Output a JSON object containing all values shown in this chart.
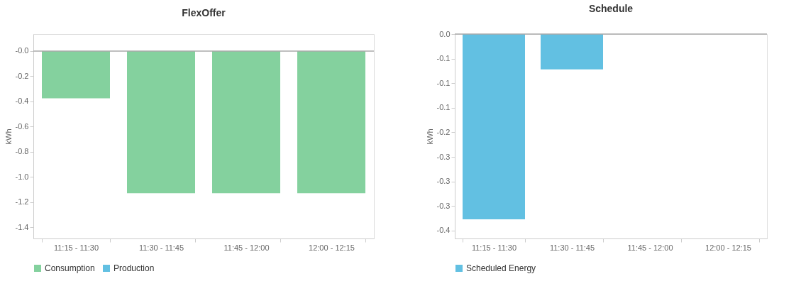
{
  "chart_data": [
    {
      "type": "bar",
      "title": "FlexOffer",
      "ylabel": "kWh",
      "categories": [
        "11:15 - 11:30",
        "11:30 - 11:45",
        "11:45 - 12:00",
        "12:00 - 12:15"
      ],
      "series": [
        {
          "name": "Consumption",
          "color": "#84d19e",
          "values": [
            -0.375,
            -1.13,
            -1.13,
            -1.13
          ]
        },
        {
          "name": "Production",
          "color": "#62c0e2",
          "values": [
            null,
            null,
            null,
            null
          ]
        }
      ],
      "ylim": [
        -1.49,
        0.135
      ],
      "yticks": [
        {
          "value": 0,
          "label": "-0.0"
        },
        -0.2,
        -0.4,
        -0.6,
        -0.8,
        {
          "value": -1.0,
          "label": "-1.0"
        },
        -1.2,
        -1.4
      ],
      "ref_lines": [
        {
          "axis": "y",
          "value": 0,
          "color": "#aaaaaa"
        }
      ],
      "grid": false,
      "legend": "bottom"
    },
    {
      "type": "bar",
      "title": "Schedule",
      "ylabel": "kWh",
      "categories": [
        "11:15 - 11:30",
        "11:30 - 11:45",
        "11:45 - 12:00",
        "12:00 - 12:15"
      ],
      "series": [
        {
          "name": "Scheduled Energy",
          "color": "#62c0e2",
          "values": [
            -0.377,
            -0.072,
            null,
            null
          ]
        }
      ],
      "ylim": [
        -0.416,
        0
      ],
      "yticks": [
        {
          "value": 0,
          "label": "0.0"
        },
        {
          "value": -0.05,
          "label": "-0.1"
        },
        {
          "value": -0.1,
          "label": "-0.1"
        },
        {
          "value": -0.15,
          "label": "-0.1"
        },
        {
          "value": -0.2,
          "label": "-0.2"
        },
        {
          "value": -0.25,
          "label": "-0.3"
        },
        {
          "value": -0.3,
          "label": "-0.3"
        },
        {
          "value": -0.35,
          "label": "-0.3"
        },
        {
          "value": -0.4,
          "label": "-0.4"
        }
      ],
      "ref_lines": [
        {
          "axis": "y",
          "value": 0,
          "color": "#aaaaaa"
        }
      ],
      "grid": false,
      "legend": "bottom"
    }
  ]
}
